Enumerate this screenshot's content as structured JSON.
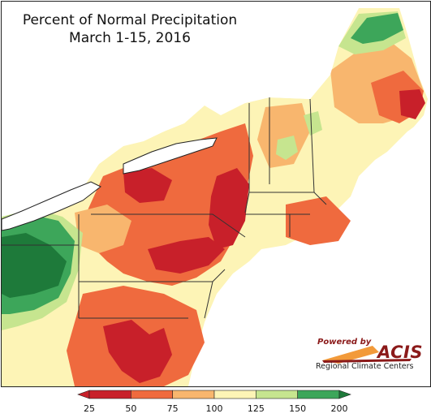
{
  "title": {
    "line1": "Percent of Normal Precipitation",
    "line2": "March 1-15, 2016"
  },
  "logo": {
    "powered_by": "Powered by",
    "brand": "ACIS",
    "org": "Regional Climate Centers"
  },
  "legend": {
    "ticks": [
      "25",
      "50",
      "75",
      "100",
      "125",
      "150",
      "200"
    ],
    "colors": [
      "#c8202a",
      "#ef6a3e",
      "#f8b66e",
      "#fdf4b6",
      "#c6e58f",
      "#3da65a"
    ],
    "arrow_left_color": "#c8202a",
    "arrow_right_color": "#1e7a3a"
  },
  "map_colors": {
    "water": "#ffffff",
    "very_dry": "#c8202a",
    "dry": "#ef6a3e",
    "somewhat_dry": "#f8b66e",
    "near_normal": "#fdf4b6",
    "somewhat_wet": "#c6e58f",
    "wet": "#3da65a",
    "very_wet": "#1e7a3a"
  }
}
